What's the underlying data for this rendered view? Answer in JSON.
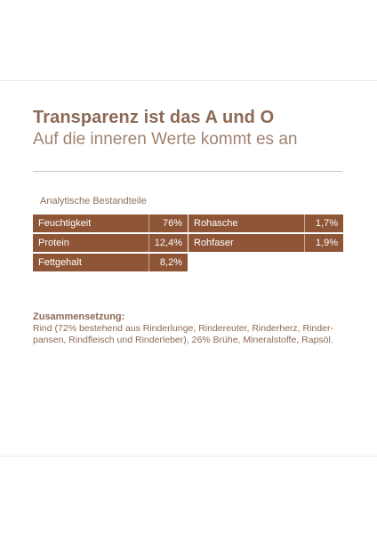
{
  "header": {
    "title": "Transparenz ist das A und O",
    "subtitle": "Auf die inneren Werte kommt es an"
  },
  "analysis": {
    "label": "Analytische Bestandteile",
    "left": [
      {
        "label": "Feuchtigkeit",
        "value": "76%"
      },
      {
        "label": "Protein",
        "value": "12,4%"
      },
      {
        "label": "Fettgehalt",
        "value": "8,2%"
      }
    ],
    "right": [
      {
        "label": "Rohasche",
        "value": "1,7%"
      },
      {
        "label": "Rohfaser",
        "value": "1,9%"
      }
    ]
  },
  "composition": {
    "heading": "Zusammensetzung:",
    "text": "Rind (72% bestehend aus Rinderlunge, Rindereuter, Rinderherz, Rinder-pansen, Rindfleisch und Rinderleber), 26% Brühe, Mineralstoffe, Rapsöl."
  },
  "colors": {
    "accent": "#8e5537",
    "text": "#8a6a56"
  }
}
